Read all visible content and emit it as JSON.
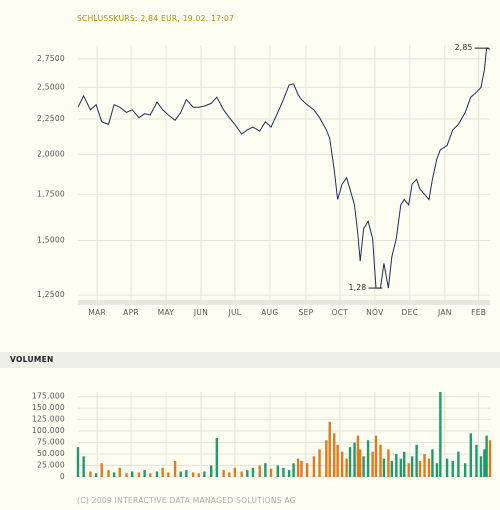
{
  "chart_data": [
    {
      "type": "line",
      "title": "SCHLUSSKURS: 2,84 EUR, 19.02. 17:07",
      "color": "#1c2f55",
      "log": true,
      "grid": true,
      "x": [
        0,
        5,
        11,
        16,
        21,
        27,
        32,
        37,
        43,
        48,
        54,
        59,
        64,
        70,
        75,
        80,
        86,
        91,
        96,
        102,
        107,
        112,
        118,
        123,
        129,
        134,
        139,
        145,
        150,
        155,
        161,
        166,
        171,
        177,
        182,
        187,
        191,
        195,
        198,
        203,
        209,
        214,
        220,
        223,
        227,
        230,
        234,
        238,
        241,
        245,
        248,
        250,
        253,
        257,
        261,
        264,
        268,
        271,
        275,
        278,
        282,
        286,
        289,
        293,
        296,
        300,
        303,
        307,
        311,
        314,
        318,
        321,
        327,
        332,
        337,
        343,
        348,
        353,
        357,
        360,
        362,
        365
      ],
      "values": [
        2.34,
        2.43,
        2.32,
        2.36,
        2.23,
        2.21,
        2.36,
        2.34,
        2.3,
        2.32,
        2.26,
        2.29,
        2.28,
        2.38,
        2.32,
        2.28,
        2.24,
        2.3,
        2.4,
        2.34,
        2.34,
        2.35,
        2.37,
        2.42,
        2.32,
        2.26,
        2.21,
        2.14,
        2.17,
        2.19,
        2.16,
        2.23,
        2.19,
        2.3,
        2.4,
        2.52,
        2.53,
        2.44,
        2.4,
        2.36,
        2.32,
        2.26,
        2.17,
        2.11,
        1.9,
        1.72,
        1.81,
        1.85,
        1.78,
        1.69,
        1.53,
        1.4,
        1.56,
        1.6,
        1.51,
        1.28,
        1.28,
        1.39,
        1.28,
        1.42,
        1.51,
        1.69,
        1.72,
        1.69,
        1.81,
        1.84,
        1.78,
        1.75,
        1.72,
        1.84,
        1.97,
        2.03,
        2.06,
        2.17,
        2.21,
        2.3,
        2.42,
        2.46,
        2.5,
        2.65,
        2.85,
        2.84
      ],
      "xlim": [
        0,
        365
      ],
      "xticks": [
        {
          "value": 17,
          "label": "MAR"
        },
        {
          "value": 47,
          "label": "APR"
        },
        {
          "value": 78,
          "label": "MAY"
        },
        {
          "value": 109,
          "label": "JUN"
        },
        {
          "value": 139,
          "label": "JUL"
        },
        {
          "value": 170,
          "label": "AUG"
        },
        {
          "value": 202,
          "label": "SEP"
        },
        {
          "value": 232,
          "label": "OCT"
        },
        {
          "value": 263,
          "label": "NOV"
        },
        {
          "value": 294,
          "label": "DEC"
        },
        {
          "value": 325,
          "label": "JAN"
        },
        {
          "value": 355,
          "label": "FEB"
        }
      ],
      "ylim": [
        1.23,
        2.88
      ],
      "yticks": [
        {
          "value": 1.25,
          "label": "1,2500"
        },
        {
          "value": 1.5,
          "label": "1,5000"
        },
        {
          "value": 1.75,
          "label": "1,7500"
        },
        {
          "value": 2.0,
          "label": "2,0000"
        },
        {
          "value": 2.25,
          "label": "2,2500"
        },
        {
          "value": 2.5,
          "label": "2,5000"
        },
        {
          "value": 2.75,
          "label": "2,7500"
        }
      ],
      "annotations": [
        {
          "x": 362,
          "value": 2.85,
          "label": "2,85"
        },
        {
          "x": 268,
          "value": 1.28,
          "label": "1,28"
        }
      ]
    },
    {
      "type": "bar",
      "title": "VOLUMEN",
      "grid": true,
      "x": [
        0,
        5,
        11,
        16,
        21,
        27,
        32,
        37,
        43,
        48,
        54,
        59,
        64,
        70,
        75,
        80,
        86,
        91,
        96,
        102,
        107,
        112,
        118,
        123,
        129,
        134,
        139,
        145,
        150,
        155,
        161,
        166,
        171,
        177,
        182,
        187,
        191,
        195,
        198,
        203,
        209,
        214,
        220,
        223,
        227,
        230,
        234,
        238,
        241,
        245,
        248,
        250,
        253,
        257,
        261,
        264,
        268,
        271,
        275,
        278,
        282,
        286,
        289,
        293,
        296,
        300,
        303,
        307,
        311,
        314,
        318,
        321,
        327,
        332,
        337,
        343,
        348,
        353,
        357,
        360,
        362,
        365
      ],
      "values": [
        65000,
        45000,
        12000,
        8000,
        30000,
        15000,
        10000,
        20000,
        8000,
        12000,
        10000,
        15000,
        8000,
        12000,
        20000,
        10000,
        35000,
        12000,
        15000,
        10000,
        8000,
        12000,
        25000,
        85000,
        15000,
        10000,
        20000,
        12000,
        15000,
        20000,
        25000,
        30000,
        18000,
        25000,
        20000,
        15000,
        30000,
        40000,
        35000,
        30000,
        45000,
        60000,
        80000,
        120000,
        95000,
        70000,
        55000,
        40000,
        65000,
        75000,
        90000,
        60000,
        45000,
        80000,
        55000,
        90000,
        70000,
        40000,
        60000,
        35000,
        50000,
        40000,
        55000,
        30000,
        45000,
        70000,
        35000,
        50000,
        40000,
        60000,
        30000,
        185000,
        40000,
        35000,
        55000,
        30000,
        95000,
        70000,
        45000,
        60000,
        90000,
        80000
      ],
      "colors": [
        "#1f9a6c",
        "#1f9a6c",
        "#e07a1a",
        "#1f9a6c",
        "#e07a1a",
        "#e07a1a",
        "#1f9a6c",
        "#e07a1a",
        "#e07a1a",
        "#1f9a6c",
        "#e07a1a",
        "#1f9a6c",
        "#e07a1a",
        "#1f9a6c",
        "#e07a1a",
        "#e07a1a",
        "#e07a1a",
        "#1f9a6c",
        "#1f9a6c",
        "#e07a1a",
        "#e07a1a",
        "#1f9a6c",
        "#1f9a6c",
        "#1f9a6c",
        "#e07a1a",
        "#e07a1a",
        "#e07a1a",
        "#e07a1a",
        "#1f9a6c",
        "#1f9a6c",
        "#e07a1a",
        "#1f9a6c",
        "#e07a1a",
        "#1f9a6c",
        "#1f9a6c",
        "#1f9a6c",
        "#1f9a6c",
        "#e07a1a",
        "#e07a1a",
        "#e07a1a",
        "#e07a1a",
        "#e07a1a",
        "#e07a1a",
        "#e07a1a",
        "#e07a1a",
        "#e07a1a",
        "#e07a1a",
        "#e07a1a",
        "#1f9a6c",
        "#1f9a6c",
        "#e07a1a",
        "#e07a1a",
        "#1f9a6c",
        "#1f9a6c",
        "#e07a1a",
        "#e07a1a",
        "#e07a1a",
        "#1f9a6c",
        "#e07a1a",
        "#1f9a6c",
        "#1f9a6c",
        "#1f9a6c",
        "#1f9a6c",
        "#e07a1a",
        "#1f9a6c",
        "#1f9a6c",
        "#e07a1a",
        "#e07a1a",
        "#e07a1a",
        "#1f9a6c",
        "#1f9a6c",
        "#1f9a6c",
        "#1f9a6c",
        "#1f9a6c",
        "#1f9a6c",
        "#1f9a6c",
        "#1f9a6c",
        "#1f9a6c",
        "#1f9a6c",
        "#1f9a6c",
        "#1f9a6c",
        "#e07a1a"
      ],
      "xlim": [
        0,
        365
      ],
      "ylim": [
        0,
        185000
      ],
      "yticks": [
        0,
        {
          "value": 25000,
          "label": "25.000"
        },
        {
          "value": 50000,
          "label": "50.000"
        },
        {
          "value": 75000,
          "label": "75.000"
        },
        {
          "value": 100000,
          "label": "100.000"
        },
        {
          "value": 125000,
          "label": "125.000"
        },
        {
          "value": 150000,
          "label": "150.000"
        },
        {
          "value": 175000,
          "label": "175.000"
        }
      ]
    }
  ],
  "copyright": "(C) 2009 INTERACTIVE DATA MANAGED SOLUTIONS AG"
}
